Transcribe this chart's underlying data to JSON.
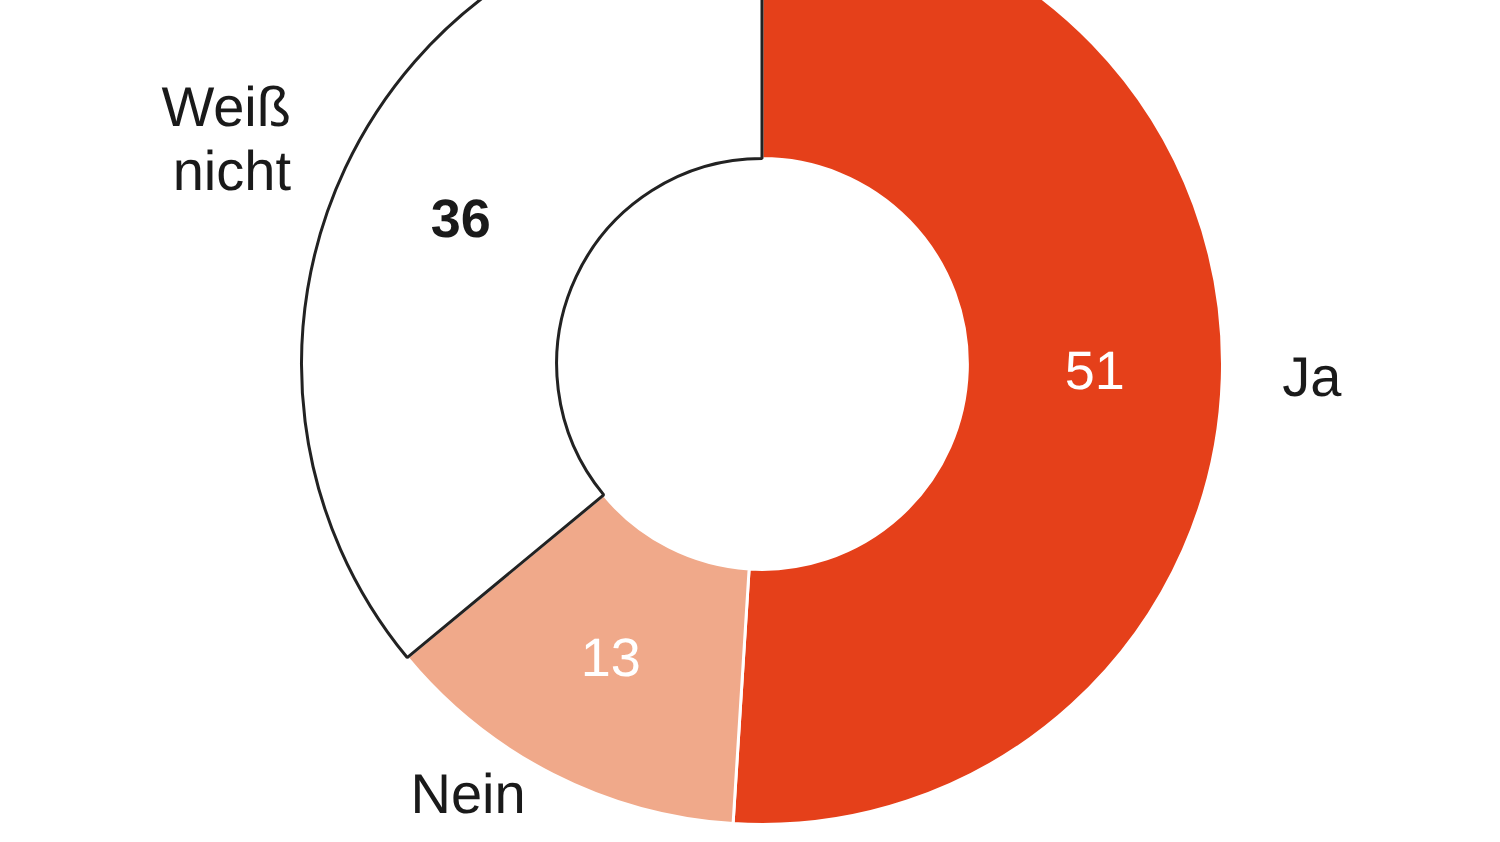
{
  "chart_data": {
    "type": "donut",
    "categories": [
      "Ja",
      "Nein",
      "Weiß nicht"
    ],
    "values": [
      51,
      13,
      36
    ],
    "colors": [
      "#e5401a",
      "#f0a98a",
      "#ffffff"
    ],
    "data_labels": true,
    "legend": false
  }
}
